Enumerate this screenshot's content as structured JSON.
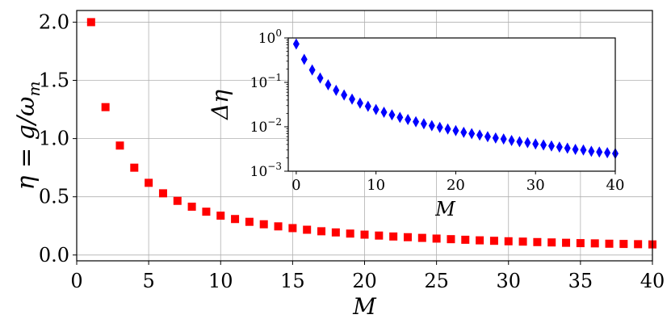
{
  "chart_data": [
    {
      "type": "scatter",
      "xlabel": "M",
      "ylabel": "η = g/ω",
      "ylabel_sub": "m",
      "xlim": [
        0,
        40
      ],
      "ylim": [
        -0.05,
        2.1
      ],
      "xticks": [
        "0",
        "5",
        "10",
        "15",
        "20",
        "25",
        "30",
        "35",
        "40"
      ],
      "yticks": [
        "0.0",
        "0.5",
        "1.0",
        "1.5",
        "2.0"
      ],
      "grid": true,
      "marker": "square",
      "color": "#ff0000",
      "x": [
        1,
        2,
        3,
        4,
        5,
        6,
        7,
        8,
        9,
        10,
        11,
        12,
        13,
        14,
        15,
        16,
        17,
        18,
        19,
        20,
        21,
        22,
        23,
        24,
        25,
        26,
        27,
        28,
        29,
        30,
        31,
        32,
        33,
        34,
        35,
        36,
        37,
        38,
        39,
        40
      ],
      "y": [
        2.0,
        1.27,
        0.94,
        0.75,
        0.62,
        0.53,
        0.465,
        0.415,
        0.372,
        0.338,
        0.309,
        0.285,
        0.264,
        0.246,
        0.231,
        0.217,
        0.204,
        0.194,
        0.184,
        0.175,
        0.167,
        0.159,
        0.153,
        0.147,
        0.141,
        0.136,
        0.131,
        0.126,
        0.122,
        0.118,
        0.115,
        0.111,
        0.108,
        0.105,
        0.102,
        0.1,
        0.097,
        0.095,
        0.093,
        0.091
      ]
    },
    {
      "type": "scatter",
      "inset": true,
      "xlabel": "M",
      "ylabel": "Δη",
      "xlim": [
        -1,
        40
      ],
      "ylim": [
        0.001,
        1
      ],
      "yscale": "log",
      "xticks": [
        "0",
        "10",
        "20",
        "30",
        "40"
      ],
      "yticks": [
        {
          "base": "10",
          "exp": "0"
        },
        {
          "base": "10",
          "exp": "−1"
        },
        {
          "base": "10",
          "exp": "−2"
        },
        {
          "base": "10",
          "exp": "−3"
        }
      ],
      "grid": false,
      "marker": "diamond",
      "color": "#0000ff",
      "x": [
        0,
        1,
        2,
        3,
        4,
        5,
        6,
        7,
        8,
        9,
        10,
        11,
        12,
        13,
        14,
        15,
        16,
        17,
        18,
        19,
        20,
        21,
        22,
        23,
        24,
        25,
        26,
        27,
        28,
        29,
        30,
        31,
        32,
        33,
        34,
        35,
        36,
        37,
        38,
        39,
        40
      ],
      "y": [
        0.73,
        0.33,
        0.19,
        0.125,
        0.088,
        0.066,
        0.052,
        0.042,
        0.034,
        0.029,
        0.0245,
        0.0212,
        0.0185,
        0.0163,
        0.0146,
        0.013,
        0.0117,
        0.0106,
        0.0097,
        0.0089,
        0.0082,
        0.0075,
        0.007,
        0.0065,
        0.006,
        0.0056,
        0.0053,
        0.0049,
        0.0046,
        0.0044,
        0.0041,
        0.0039,
        0.0037,
        0.0035,
        0.0033,
        0.0031,
        0.003,
        0.0028,
        0.0027,
        0.0026,
        0.0025
      ]
    }
  ]
}
